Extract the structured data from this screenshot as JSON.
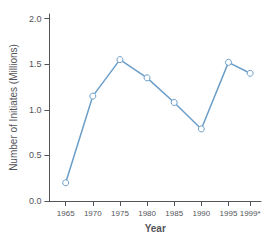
{
  "chart_data": {
    "type": "line",
    "x": [
      1965,
      1970,
      1975,
      1980,
      1985,
      1990,
      1995,
      1999
    ],
    "values": [
      0.2,
      1.15,
      1.55,
      1.35,
      1.08,
      0.79,
      1.52,
      1.4
    ],
    "xlabel": "Year",
    "ylabel": "Number of Initiates (Millions)",
    "xlim": [
      1962,
      2001
    ],
    "xticks": [
      1965,
      1970,
      1975,
      1980,
      1985,
      1990,
      1995,
      {
        "value": 1999,
        "label": "1999*"
      }
    ],
    "ylim": [
      0.0,
      2.05
    ],
    "yticks": [
      {
        "value": 0,
        "label": "0.0"
      },
      0.5,
      {
        "value": 1,
        "label": "1.0"
      },
      1.5,
      {
        "value": 2,
        "label": "2.0"
      }
    ],
    "color": "#6b9ec8",
    "marker": "circle",
    "grid": false
  }
}
